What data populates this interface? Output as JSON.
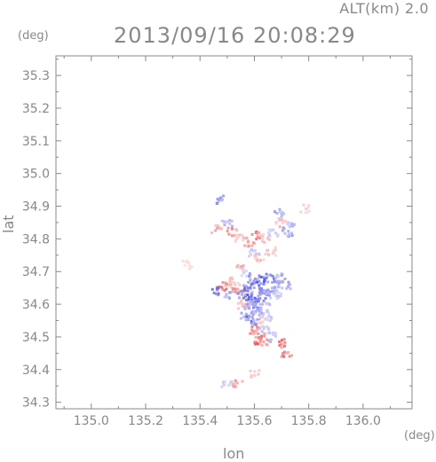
{
  "chart_data": {
    "type": "scatter",
    "title": "2013/09/16 20:08:29",
    "subtitle": "ALT(km) 2.0",
    "xlabel": "lon",
    "ylabel": "lat",
    "x_unit": "(deg)",
    "y_unit": "(deg)",
    "xlim": [
      134.87,
      136.18
    ],
    "ylim": [
      34.28,
      35.36
    ],
    "xticks": [
      "135.0",
      "135.2",
      "135.4",
      "135.6",
      "135.8",
      "136.0"
    ],
    "yticks": [
      "34.3",
      "34.4",
      "34.5",
      "34.6",
      "34.7",
      "34.8",
      "34.9",
      "35.0",
      "35.1",
      "35.2",
      "35.3"
    ],
    "grid": false,
    "colors": {
      "positive": "#e85050",
      "negative": "#5a5ae8",
      "axis": "#888888"
    },
    "series": [
      {
        "values": [
          {
            "x": 135.48,
            "y": 34.92,
            "v": -0.6
          },
          {
            "x": 135.46,
            "y": 34.83,
            "v": 0.5
          },
          {
            "x": 135.5,
            "y": 34.85,
            "v": -0.4
          },
          {
            "x": 135.52,
            "y": 34.82,
            "v": 0.6
          },
          {
            "x": 135.55,
            "y": 34.8,
            "v": 0.3
          },
          {
            "x": 135.58,
            "y": 34.79,
            "v": 0.5
          },
          {
            "x": 135.61,
            "y": 34.81,
            "v": 0.7
          },
          {
            "x": 135.64,
            "y": 34.8,
            "v": 0.4
          },
          {
            "x": 135.67,
            "y": 34.82,
            "v": -0.3
          },
          {
            "x": 135.69,
            "y": 34.88,
            "v": -0.5
          },
          {
            "x": 135.7,
            "y": 34.85,
            "v": 0.4
          },
          {
            "x": 135.72,
            "y": 34.82,
            "v": -0.6
          },
          {
            "x": 135.74,
            "y": 34.84,
            "v": -0.4
          },
          {
            "x": 135.79,
            "y": 34.89,
            "v": 0.3
          },
          {
            "x": 135.6,
            "y": 34.76,
            "v": -0.3
          },
          {
            "x": 135.62,
            "y": 34.74,
            "v": 0.4
          },
          {
            "x": 135.66,
            "y": 34.76,
            "v": 0.3
          },
          {
            "x": 135.55,
            "y": 34.71,
            "v": 0.5
          },
          {
            "x": 135.57,
            "y": 34.69,
            "v": -0.3
          },
          {
            "x": 135.5,
            "y": 34.67,
            "v": 0.5
          },
          {
            "x": 135.53,
            "y": 34.66,
            "v": 0.3
          },
          {
            "x": 135.48,
            "y": 34.65,
            "v": 0.7
          },
          {
            "x": 135.46,
            "y": 34.64,
            "v": -0.8
          },
          {
            "x": 135.51,
            "y": 34.63,
            "v": -0.5
          },
          {
            "x": 135.54,
            "y": 34.64,
            "v": 0.8
          },
          {
            "x": 135.56,
            "y": 34.63,
            "v": -0.7
          },
          {
            "x": 135.58,
            "y": 34.66,
            "v": -0.8
          },
          {
            "x": 135.6,
            "y": 34.68,
            "v": -0.6
          },
          {
            "x": 135.62,
            "y": 34.67,
            "v": -0.9
          },
          {
            "x": 135.64,
            "y": 34.65,
            "v": -0.8
          },
          {
            "x": 135.66,
            "y": 34.68,
            "v": -0.7
          },
          {
            "x": 135.68,
            "y": 34.66,
            "v": -0.6
          },
          {
            "x": 135.7,
            "y": 34.68,
            "v": -0.5
          },
          {
            "x": 135.72,
            "y": 34.66,
            "v": -0.5
          },
          {
            "x": 135.59,
            "y": 34.62,
            "v": -0.9
          },
          {
            "x": 135.61,
            "y": 34.64,
            "v": -0.7
          },
          {
            "x": 135.63,
            "y": 34.62,
            "v": -0.8
          },
          {
            "x": 135.65,
            "y": 34.63,
            "v": -0.6
          },
          {
            "x": 135.67,
            "y": 34.63,
            "v": -0.5
          },
          {
            "x": 135.69,
            "y": 34.63,
            "v": -0.3
          },
          {
            "x": 135.56,
            "y": 34.6,
            "v": 0.4
          },
          {
            "x": 135.58,
            "y": 34.59,
            "v": -0.5
          },
          {
            "x": 135.6,
            "y": 34.6,
            "v": -0.7
          },
          {
            "x": 135.62,
            "y": 34.58,
            "v": -0.6
          },
          {
            "x": 135.64,
            "y": 34.59,
            "v": -0.4
          },
          {
            "x": 135.57,
            "y": 34.56,
            "v": -0.5
          },
          {
            "x": 135.59,
            "y": 34.55,
            "v": -0.8
          },
          {
            "x": 135.61,
            "y": 34.56,
            "v": -0.5
          },
          {
            "x": 135.63,
            "y": 34.55,
            "v": 0.3
          },
          {
            "x": 135.65,
            "y": 34.56,
            "v": -0.3
          },
          {
            "x": 135.6,
            "y": 34.52,
            "v": 0.6
          },
          {
            "x": 135.62,
            "y": 34.51,
            "v": 0.5
          },
          {
            "x": 135.64,
            "y": 34.52,
            "v": -0.3
          },
          {
            "x": 135.61,
            "y": 34.49,
            "v": 0.8
          },
          {
            "x": 135.64,
            "y": 34.48,
            "v": 0.6
          },
          {
            "x": 135.67,
            "y": 34.5,
            "v": -0.4
          },
          {
            "x": 135.7,
            "y": 34.48,
            "v": 0.7
          },
          {
            "x": 135.72,
            "y": 34.44,
            "v": 0.7
          },
          {
            "x": 135.54,
            "y": 34.36,
            "v": 0.5
          },
          {
            "x": 135.5,
            "y": 34.35,
            "v": -0.3
          },
          {
            "x": 135.35,
            "y": 34.72,
            "v": 0.2
          },
          {
            "x": 135.6,
            "y": 34.39,
            "v": 0.3
          }
        ]
      }
    ]
  }
}
